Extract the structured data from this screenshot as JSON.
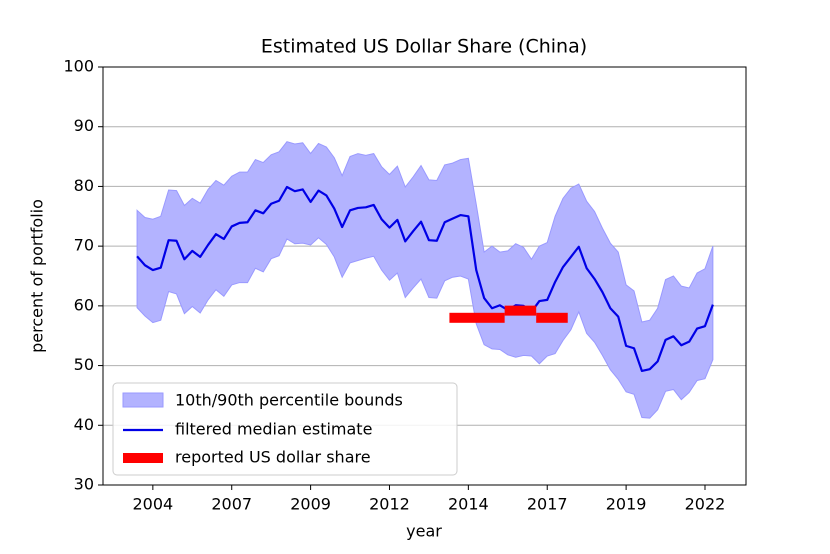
{
  "chart_data": {
    "type": "line",
    "title": "Estimated US Dollar Share (China)",
    "xlabel": "year",
    "ylabel": "percent of portfolio",
    "x": [
      2004,
      2004.25,
      2004.5,
      2004.75,
      2005,
      2005.25,
      2005.5,
      2005.75,
      2006,
      2006.25,
      2006.5,
      2006.75,
      2007,
      2007.25,
      2007.5,
      2007.75,
      2008,
      2008.25,
      2008.5,
      2008.75,
      2009,
      2009.25,
      2009.5,
      2009.75,
      2010,
      2010.25,
      2010.5,
      2010.75,
      2011,
      2011.25,
      2011.5,
      2011.75,
      2012,
      2012.25,
      2012.5,
      2012.75,
      2013,
      2013.25,
      2013.5,
      2013.75,
      2014,
      2014.25,
      2014.5,
      2014.75,
      2015,
      2015.25,
      2015.5,
      2015.75,
      2016,
      2016.25,
      2016.5,
      2016.75,
      2017,
      2017.25,
      2017.5,
      2017.75,
      2018,
      2018.25,
      2018.5,
      2018.75,
      2019,
      2019.25,
      2019.5,
      2019.75,
      2020,
      2020.25,
      2020.5,
      2020.75,
      2021,
      2021.25,
      2021.5,
      2021.75,
      2022,
      2022.25
    ],
    "xlim": [
      2002.92,
      2023.3
    ],
    "xticks": [
      {
        "value": 2004.5,
        "label": "2004"
      },
      {
        "value": 2007,
        "label": "2007"
      },
      {
        "value": 2009.5,
        "label": "2009"
      },
      {
        "value": 2012,
        "label": "2012"
      },
      {
        "value": 2014.5,
        "label": "2014"
      },
      {
        "value": 2017,
        "label": "2017"
      },
      {
        "value": 2019.5,
        "label": "2019"
      },
      {
        "value": 2022,
        "label": "2022"
      }
    ],
    "ylim": [
      30,
      100
    ],
    "yticks": [
      30,
      40,
      50,
      60,
      70,
      80,
      90,
      100
    ],
    "grid": true,
    "legend": "lower left",
    "band": {
      "name": "10th/90th percentile bounds",
      "color": "#b3b3ff",
      "upper": [
        76,
        74.8,
        74.5,
        75,
        79.4,
        79.3,
        76.8,
        78,
        77.2,
        79.5,
        81,
        80.2,
        81.7,
        82.4,
        82.4,
        84.5,
        84,
        85.3,
        85.8,
        87.5,
        87.1,
        87.3,
        85.5,
        87.2,
        86.6,
        84.8,
        81.8,
        85,
        85.5,
        85.2,
        85.5,
        83.3,
        82,
        83.4,
        79.9,
        81.6,
        83.5,
        81.1,
        81,
        83.6,
        83.9,
        84.5,
        84.7,
        77,
        69,
        70,
        69,
        69.2,
        70.4,
        69.8,
        67.8,
        70,
        70.6,
        75,
        78,
        79.7,
        80.4,
        77.5,
        75.8,
        73,
        70.5,
        69,
        63.5,
        62.5,
        57.3,
        57.6,
        59.6,
        64.4,
        65,
        63.3,
        63,
        65.5,
        66.2,
        70
      ],
      "lower": [
        59.7,
        58.3,
        57.2,
        57.6,
        62.4,
        62,
        58.7,
        59.9,
        58.8,
        61,
        62.7,
        61.6,
        63.5,
        63.9,
        63.9,
        66.3,
        65.7,
        67.9,
        68.4,
        71.2,
        70.4,
        70.5,
        70.2,
        71.4,
        70.3,
        68.2,
        64.8,
        67.2,
        67.6,
        68,
        68.3,
        66,
        64.3,
        65.5,
        61.4,
        63,
        64.5,
        61.4,
        61.3,
        64.2,
        64.8,
        65,
        64.5,
        57,
        53.5,
        52.8,
        52.7,
        51.8,
        51.4,
        51.7,
        51.6,
        50.3,
        51.6,
        52,
        54.2,
        56,
        59,
        55.4,
        53.9,
        51.7,
        49.3,
        47.7,
        45.6,
        45.2,
        41.3,
        41.2,
        42.6,
        45.7,
        46,
        44.3,
        45.5,
        47.5,
        47.8,
        51
      ]
    },
    "series": [
      {
        "name": "filtered median estimate",
        "color": "#0000e6",
        "values": [
          68.3,
          66.8,
          66.0,
          66.4,
          71.0,
          70.9,
          67.8,
          69.2,
          68.2,
          70.2,
          72.0,
          71.2,
          73.3,
          73.9,
          74.0,
          76.0,
          75.5,
          77.1,
          77.6,
          79.9,
          79.2,
          79.5,
          77.4,
          79.3,
          78.5,
          76.3,
          73.2,
          76.0,
          76.4,
          76.5,
          76.9,
          74.5,
          73.1,
          74.4,
          70.8,
          72.5,
          74.1,
          71.0,
          70.9,
          74.0,
          74.6,
          75.2,
          75.0,
          66.0,
          61.3,
          59.6,
          60.1,
          59.3,
          60.1,
          60.0,
          59.0,
          60.8,
          61.0,
          64.0,
          66.5,
          68.2,
          69.9,
          66.3,
          64.5,
          62.3,
          59.6,
          58.2,
          53.3,
          52.9,
          49.1,
          49.4,
          50.7,
          54.3,
          54.9,
          53.4,
          54.0,
          56.2,
          56.6,
          60.2
        ]
      }
    ],
    "reported": {
      "name": "reported US dollar share",
      "color": "#ff0000",
      "periods": [
        [
          2013.9,
          2015.65
        ],
        [
          2015.65,
          2016.65
        ],
        [
          2016.65,
          2017.65
        ]
      ],
      "values": [
        58,
        59.2,
        58
      ]
    }
  }
}
